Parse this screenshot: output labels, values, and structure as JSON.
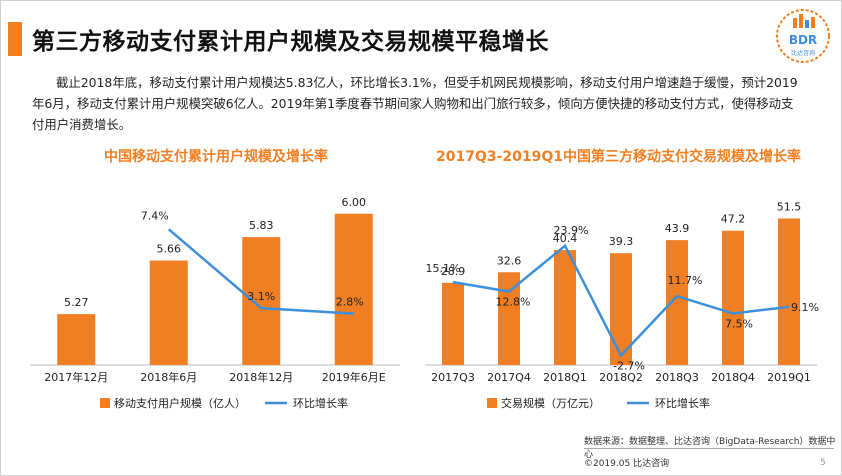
{
  "title": "第三方移动支付累计用户规模及交易规模平稳增长",
  "logo": {
    "text": "BDR",
    "subtext": "比达咨询"
  },
  "intro": "截止2018年底，移动支付累计用户规模达5.83亿人，环比增长3.1%，但受手机网民规模影响，移动支付用户增速趋于缓慢，预计2019年6月，移动支付累计用户规模突破6亿人。2019年第1季度春节期间家人购物和出门旅行较多，倾向方便快捷的移动支付方式，使得移动支付用户消费增长。",
  "colors": {
    "bar": "#f07f23",
    "line": "#3d8fdc",
    "accent": "#f07f23"
  },
  "chart_data": [
    {
      "type": "bar+line",
      "title": "中国移动支付累计用户规模及增长率",
      "categories": [
        "2017年12月",
        "2018年6月",
        "2018年12月",
        "2019年6月E"
      ],
      "series": [
        {
          "name": "移动支付用户规模（亿人）",
          "type": "bar",
          "values": [
            5.27,
            5.66,
            5.83,
            6.0
          ],
          "labels": [
            "5.27",
            "5.66",
            "5.83",
            "6.00"
          ]
        },
        {
          "name": "环比增长率",
          "type": "line",
          "values": [
            null,
            7.4,
            3.1,
            2.8
          ],
          "labels": [
            "",
            "7.4%",
            "3.1%",
            "2.8%"
          ]
        }
      ],
      "bar_range": [
        4.9,
        6.1
      ],
      "line_range": [
        0,
        9
      ],
      "legend": "bottom"
    },
    {
      "type": "bar+line",
      "title": "2017Q3-2019Q1中国第三方移动支付交易规模及增长率",
      "categories": [
        "2017Q3",
        "2017Q4",
        "2018Q1",
        "2018Q2",
        "2018Q3",
        "2018Q4",
        "2019Q1"
      ],
      "series": [
        {
          "name": "交易规模（万亿元）",
          "type": "bar",
          "values": [
            28.9,
            32.6,
            40.4,
            39.3,
            43.9,
            47.2,
            51.5
          ],
          "labels": [
            "28.9",
            "32.6",
            "40.4",
            "39.3",
            "43.9",
            "47.2",
            "51.5"
          ]
        },
        {
          "name": "环比增长率",
          "type": "line",
          "values": [
            15.1,
            12.8,
            23.9,
            -2.7,
            11.7,
            7.5,
            9.1
          ],
          "labels": [
            "15.1%",
            "12.8%",
            "23.9%",
            "-2.7%",
            "11.7%",
            "7.5%",
            "9.1%"
          ]
        }
      ],
      "bar_range": [
        0,
        58
      ],
      "line_range": [
        -5,
        35
      ],
      "legend": "bottom"
    }
  ],
  "source": "数据来源：数据整理、比达咨询（BigData-Research）数据中心",
  "copyright": "©2019.05  比达咨询",
  "page_number": "5"
}
